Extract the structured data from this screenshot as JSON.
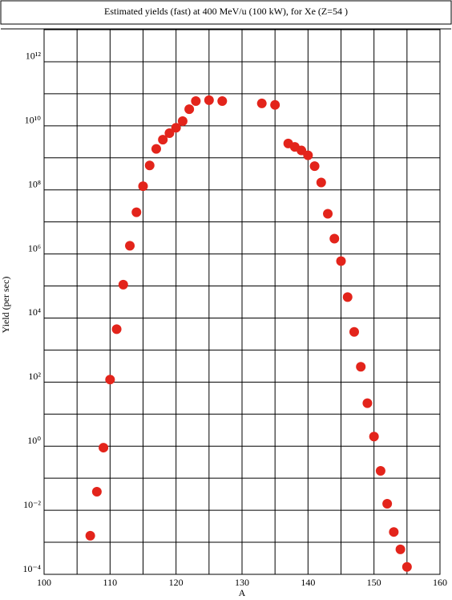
{
  "chart_data": {
    "type": "scatter",
    "title": "Estimated yields (fast) at 400 MeV/u (100 kW), for Xe (Z=54 )",
    "x_label": "A",
    "y_label": "Yield (per sec)",
    "log_y": true,
    "grid": true,
    "color": "#e3241b",
    "x": [
      107,
      108,
      109,
      110,
      111,
      112,
      113,
      114,
      115,
      116,
      117,
      118,
      119,
      120,
      121,
      122,
      123,
      125,
      127,
      133,
      135,
      137,
      138,
      139,
      140,
      141,
      142,
      143,
      144,
      145,
      146,
      147,
      148,
      149,
      150,
      151,
      152,
      153,
      154,
      155
    ],
    "values": [
      0.0016,
      0.038,
      0.9,
      120,
      4500,
      110000,
      1800000,
      20000000,
      130000000,
      580000000,
      1900000000,
      3700000000,
      5900000000,
      8700000000,
      14000000000,
      33000000000,
      59000000000,
      63000000000,
      59000000000,
      50000000000,
      45000000000,
      2800000000,
      2200000000,
      1700000000,
      1200000000,
      550000000,
      170000000,
      18000000,
      3000000,
      600000,
      45000,
      3700,
      300,
      22,
      2,
      0.17,
      0.016,
      0.0021,
      0.0006,
      0.00017
    ],
    "xlim": [
      100,
      160
    ],
    "xticks": [
      100,
      110,
      120,
      130,
      140,
      150,
      160
    ],
    "minor_xticks": [
      105,
      115,
      125,
      135,
      145,
      155
    ],
    "ylim": [
      0.0001,
      10000000000000
    ],
    "yticks": [
      {
        "value": 0.0001,
        "label": "10⁻⁴"
      },
      {
        "value": 0.01,
        "label": "10⁻²"
      },
      {
        "value": 1,
        "label": "10⁰"
      },
      {
        "value": 100,
        "label": "10²"
      },
      {
        "value": 10000,
        "label": "10⁴"
      },
      {
        "value": 1000000,
        "label": "10⁶"
      },
      {
        "value": 100000000,
        "label": "10⁸"
      },
      {
        "value": 10000000000,
        "label": "10¹⁰"
      },
      {
        "value": 1000000000000,
        "label": "10¹²"
      }
    ],
    "minor_yticks": [
      0.001,
      0.1,
      10,
      1000,
      100000,
      10000000,
      1000000000,
      100000000000
    ]
  }
}
